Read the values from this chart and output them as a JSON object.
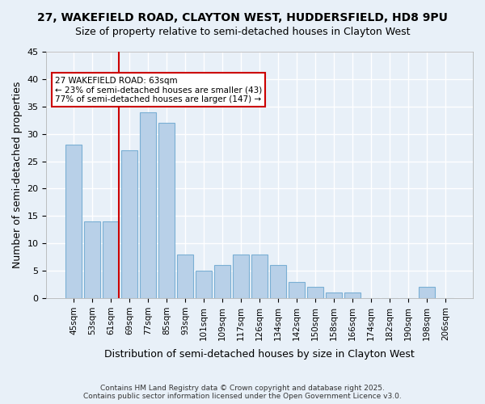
{
  "title1": "27, WAKEFIELD ROAD, CLAYTON WEST, HUDDERSFIELD, HD8 9PU",
  "title2": "Size of property relative to semi-detached houses in Clayton West",
  "xlabel": "Distribution of semi-detached houses by size in Clayton West",
  "ylabel": "Number of semi-detached properties",
  "categories": [
    "45sqm",
    "53sqm",
    "61sqm",
    "69sqm",
    "77sqm",
    "85sqm",
    "93sqm",
    "101sqm",
    "109sqm",
    "117sqm",
    "126sqm",
    "134sqm",
    "142sqm",
    "150sqm",
    "158sqm",
    "166sqm",
    "174sqm",
    "182sqm",
    "190sqm",
    "198sqm",
    "206sqm"
  ],
  "values": [
    28,
    14,
    14,
    27,
    34,
    32,
    8,
    5,
    6,
    8,
    8,
    6,
    3,
    2,
    1,
    1,
    0,
    0,
    0,
    2,
    0
  ],
  "bar_color": "#b8d0e8",
  "bar_edge_color": "#7aafd4",
  "vline_x_index": 2,
  "vline_color": "#cc0000",
  "annotation_title": "27 WAKEFIELD ROAD: 63sqm",
  "annotation_line1": "← 23% of semi-detached houses are smaller (43)",
  "annotation_line2": "77% of semi-detached houses are larger (147) →",
  "annotation_box_color": "#cc0000",
  "ylim": [
    0,
    45
  ],
  "yticks": [
    0,
    5,
    10,
    15,
    20,
    25,
    30,
    35,
    40,
    45
  ],
  "footer": "Contains HM Land Registry data © Crown copyright and database right 2025.\nContains public sector information licensed under the Open Government Licence v3.0.",
  "bg_color": "#e8f0f8",
  "grid_color": "#ffffff",
  "title_fontsize": 10,
  "axis_label_fontsize": 9
}
